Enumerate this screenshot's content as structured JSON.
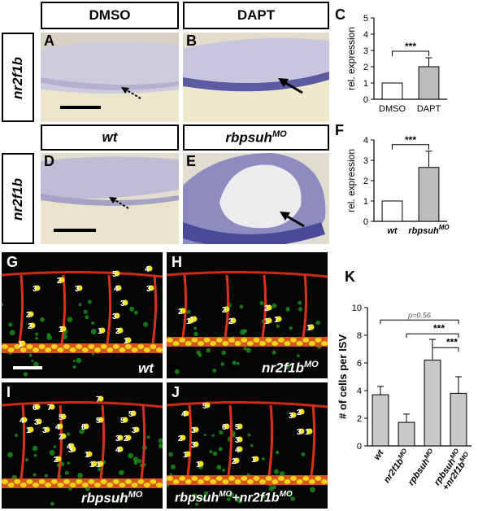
{
  "headers": {
    "dmso": "DMSO",
    "dapt": "DAPT",
    "wt": "wt",
    "rbpsuh_base": "rbpsuh",
    "rbpsuh_sup": "MO"
  },
  "row_labels": {
    "top": "nr2f1b",
    "middle": "nr2f1b"
  },
  "panel_letters": {
    "A": "A",
    "B": "B",
    "C": "C",
    "D": "D",
    "E": "E",
    "F": "F",
    "G": "G",
    "H": "H",
    "I": "I",
    "J": "J",
    "K": "K"
  },
  "fluor_captions": {
    "G": "wt",
    "H_base": "nr2f1b",
    "H_sup": "MO",
    "I_base": "rbpsuh",
    "I_sup": "MO",
    "J_base1": "rbpsuh",
    "J_sup1": "MO",
    "J_plus": "+",
    "J_base2": "nr2f1b",
    "J_sup2": "MO"
  },
  "cell_numbers": {
    "G": [
      "3",
      "2",
      "3",
      "5",
      "4",
      "4",
      "3",
      "3",
      "2",
      "3",
      "2",
      "1",
      "1",
      "1",
      "2",
      "1"
    ],
    "H": [
      "2",
      "1",
      "2",
      "2",
      "1",
      "2",
      "1",
      "1",
      "1"
    ],
    "I": [
      "7",
      "6",
      "7",
      "4",
      "3",
      "5",
      "5",
      "1",
      "4",
      "6",
      "3",
      "2",
      "4",
      "5",
      "3",
      "1",
      "5",
      "2",
      "1",
      "3",
      "4",
      "3",
      "2",
      "1"
    ],
    "J": [
      "4",
      "6",
      "5",
      "3",
      "3",
      "5",
      "3",
      "2",
      "3",
      "4",
      "2",
      "1",
      "3",
      "2",
      "1",
      "1",
      "1"
    ]
  },
  "chart_data": [
    {
      "panel": "C",
      "type": "bar",
      "ylabel": "rel. expression",
      "categories": [
        "DMSO",
        "DAPT"
      ],
      "values": [
        1.0,
        2.0
      ],
      "errors": [
        0,
        0.55
      ],
      "ylim": [
        0,
        5
      ],
      "yticks": [
        "0",
        "1",
        "2",
        "3",
        "4",
        "5"
      ],
      "bar_colors": [
        "#ffffff",
        "#bdbdbd"
      ],
      "significance": "***",
      "italic_labels": false
    },
    {
      "panel": "F",
      "type": "bar",
      "ylabel": "rel. expression",
      "categories": [
        "wt",
        "rbpsuh"
      ],
      "category_sup": [
        "",
        "MO"
      ],
      "values": [
        1.0,
        2.65
      ],
      "errors": [
        0,
        0.8
      ],
      "ylim": [
        0,
        4
      ],
      "yticks": [
        "0",
        "1",
        "2",
        "3",
        "4"
      ],
      "bar_colors": [
        "#ffffff",
        "#bdbdbd"
      ],
      "significance": "***",
      "italic_labels": true
    },
    {
      "panel": "K",
      "type": "bar",
      "ylabel": "# of cells per ISV",
      "categories": [
        "wt",
        "nr2f1b",
        "rpbsuh",
        "rpbsuh"
      ],
      "category_sup": [
        "",
        "MO",
        "MO",
        "MO"
      ],
      "category_line2": [
        "",
        "",
        "",
        "+nr2f1b"
      ],
      "category_line2_sup": [
        "",
        "",
        "",
        "MO"
      ],
      "values": [
        3.7,
        1.7,
        6.2,
        3.8
      ],
      "errors": [
        0.6,
        0.6,
        1.5,
        1.2
      ],
      "ylim": [
        0,
        10
      ],
      "yticks": [
        "0",
        "2",
        "4",
        "6",
        "8",
        "10"
      ],
      "bar_colors": [
        "#c8c8c8",
        "#c8c8c8",
        "#c8c8c8",
        "#c8c8c8"
      ],
      "significance": [
        {
          "from": 0,
          "to": 3,
          "label": "p=0.56"
        },
        {
          "from": 1,
          "to": 3,
          "label": "***"
        },
        {
          "from": 2,
          "to": 3,
          "label": "***"
        }
      ]
    }
  ]
}
